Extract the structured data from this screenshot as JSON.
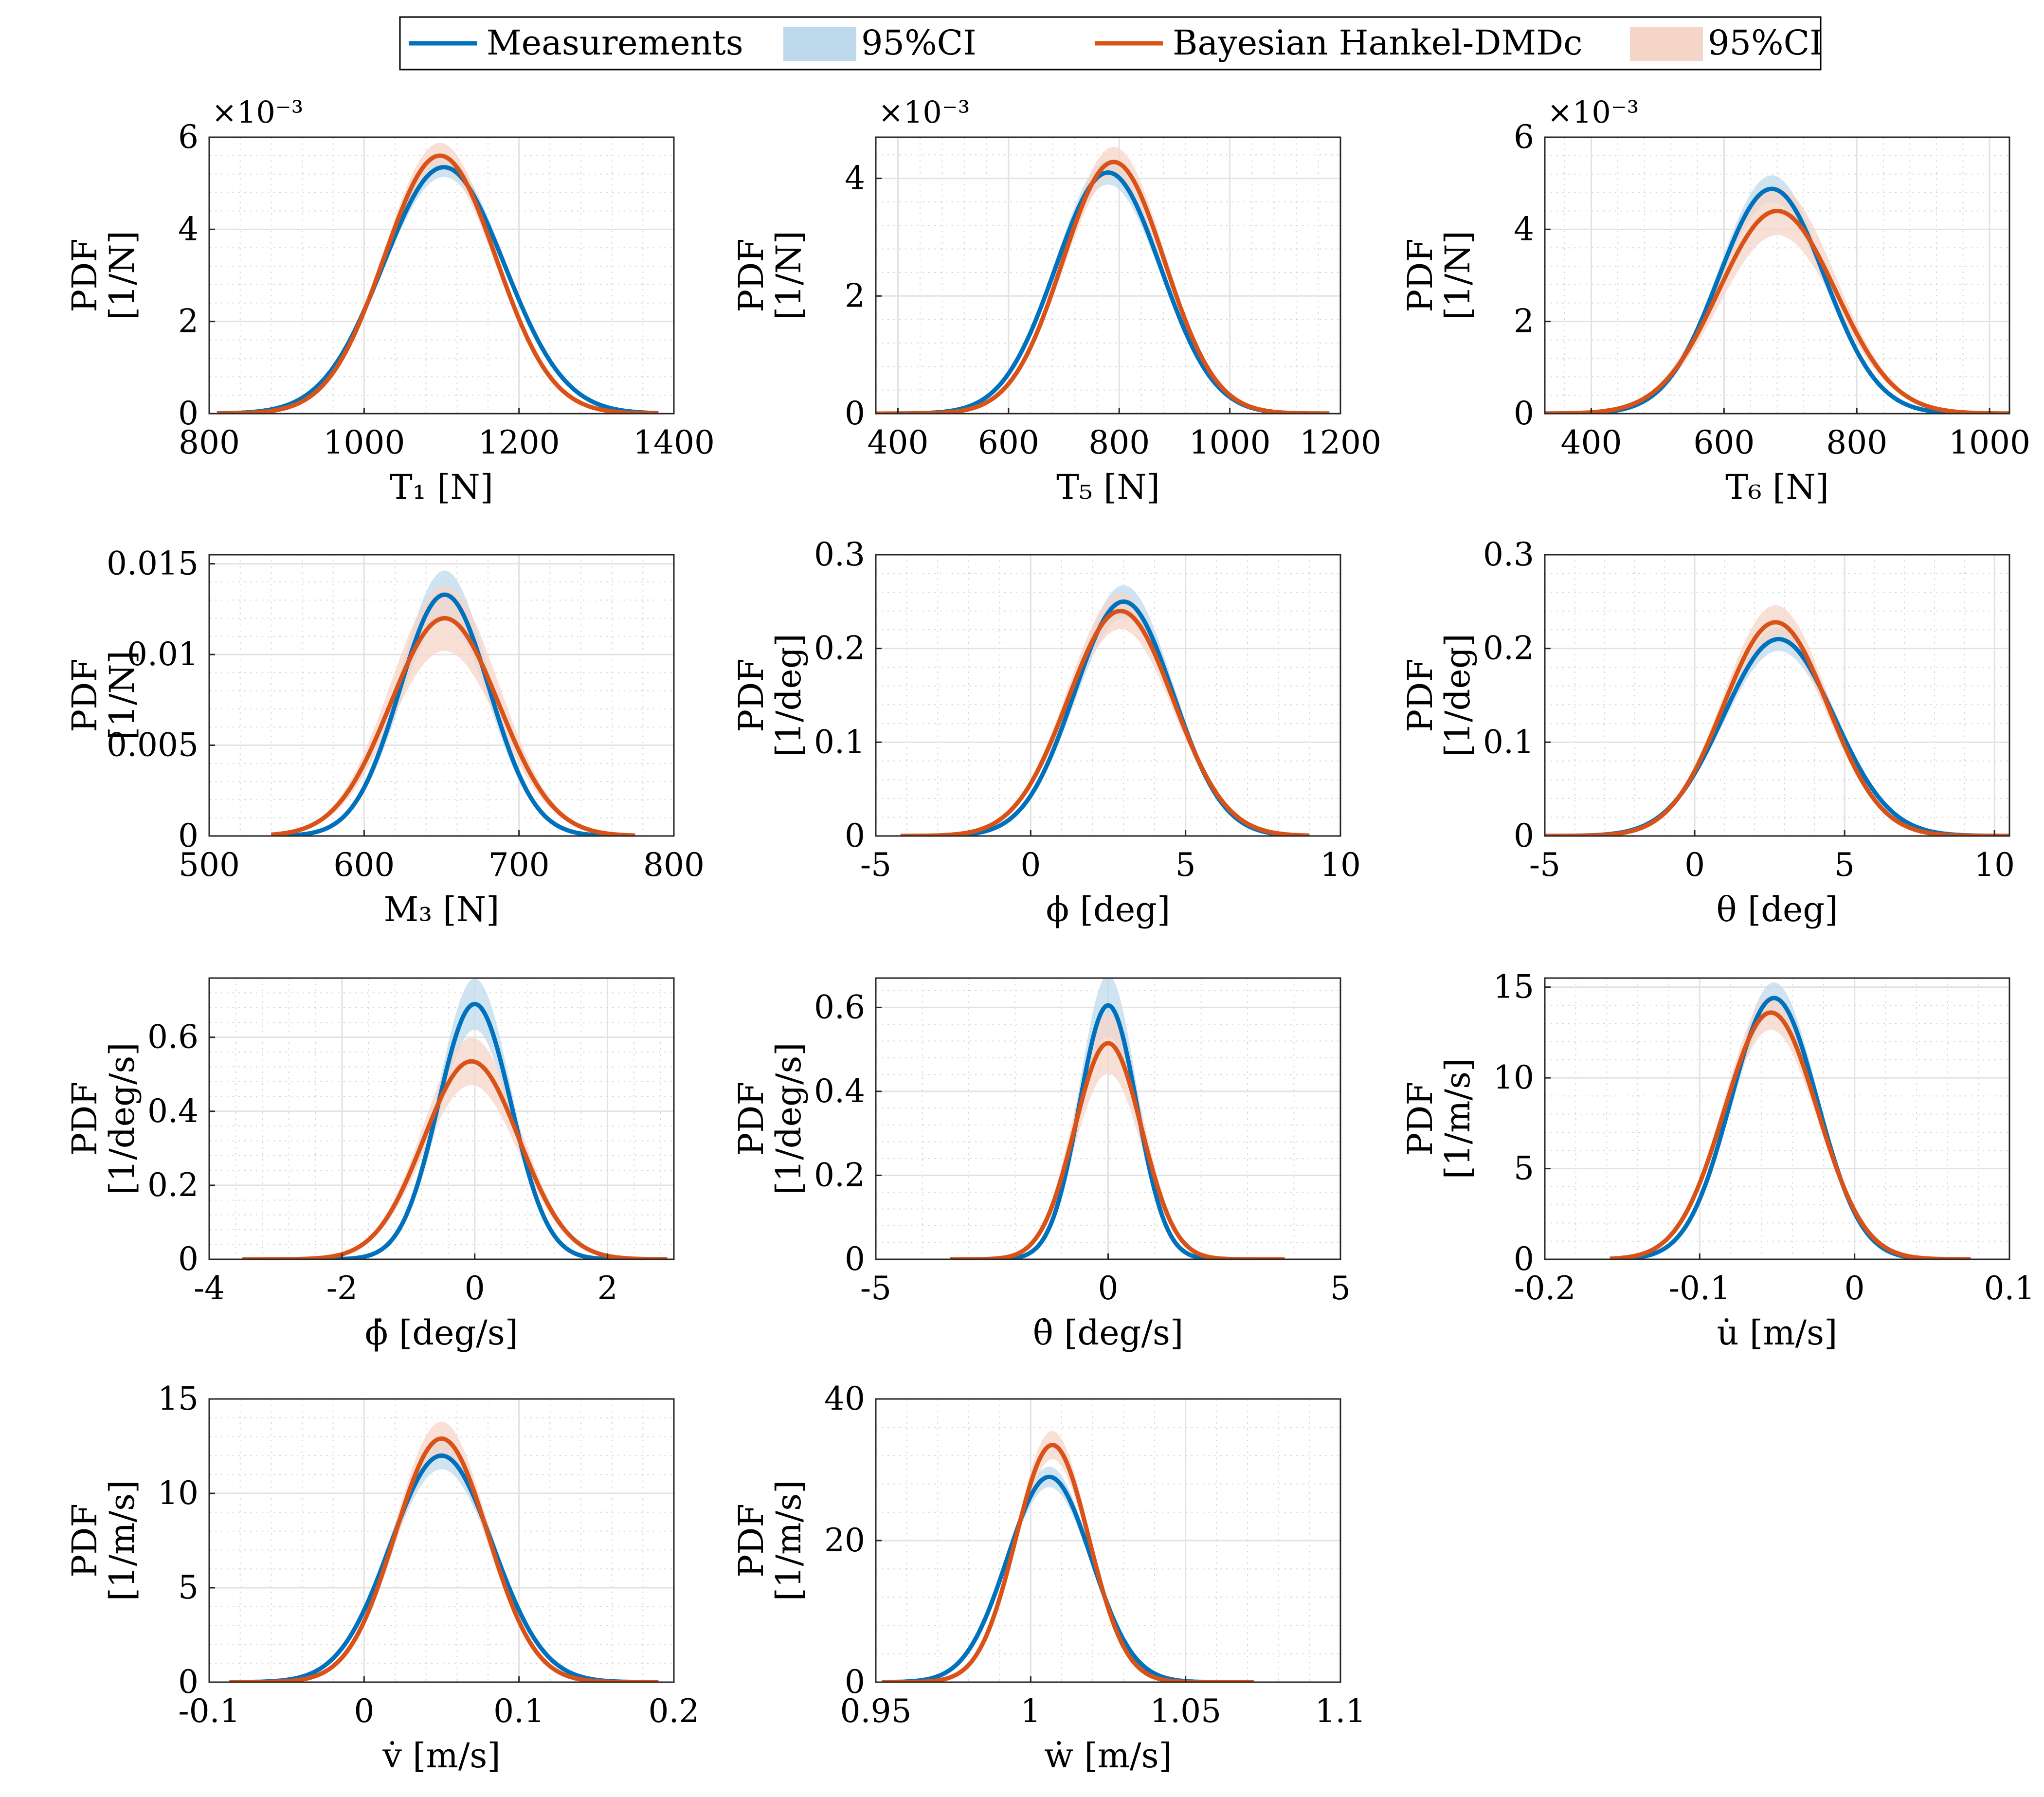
{
  "legend": {
    "entries": [
      {
        "label": "Measurements",
        "kind": "line",
        "color": "#0072BD"
      },
      {
        "label": "95%CI",
        "kind": "band",
        "color": "#BFD9EC"
      },
      {
        "label": "Bayesian Hankel-DMDc",
        "kind": "line",
        "color": "#D95319"
      },
      {
        "label": "95%CI",
        "kind": "band",
        "color": "#F6D5C9"
      }
    ]
  },
  "chart_data": [
    {
      "type": "line",
      "title": "",
      "xlabel": "T₁ [N]",
      "ylabel": [
        "PDF",
        "[1/N]"
      ],
      "exponent": "×10⁻³",
      "xlim": [
        800,
        1400
      ],
      "ylim": [
        0,
        6
      ],
      "xticks": [
        800,
        1000,
        1200,
        1400
      ],
      "xticklabels": [
        "800",
        "1000",
        "1200",
        "1400"
      ],
      "yticks": [
        0,
        2,
        4,
        6
      ],
      "yticklabels": [
        "0",
        "2",
        "4",
        "6"
      ],
      "series": [
        {
          "name": "Measurements",
          "color": "#0072BD",
          "mu": 1103,
          "sigma": 78,
          "peak": 5.35,
          "support": [
            810,
            1380
          ],
          "ci": 0.04
        },
        {
          "name": "Bayesian Hankel-DMDc",
          "color": "#D95319",
          "mu": 1098,
          "sigma": 72,
          "peak": 5.6,
          "support": [
            810,
            1380
          ],
          "ci": 0.05
        }
      ]
    },
    {
      "type": "line",
      "title": "",
      "xlabel": "T₅ [N]",
      "ylabel": [
        "PDF",
        "[1/N]"
      ],
      "exponent": "×10⁻³",
      "xlim": [
        360,
        1200
      ],
      "ylim": [
        0,
        4.7
      ],
      "xticks": [
        400,
        600,
        800,
        1000,
        1200
      ],
      "xticklabels": [
        "400",
        "600",
        "800",
        "1000",
        "1200"
      ],
      "yticks": [
        0,
        2,
        4
      ],
      "yticklabels": [
        "0",
        "2",
        "4"
      ],
      "series": [
        {
          "name": "Measurements",
          "color": "#0072BD",
          "mu": 780,
          "sigma": 95,
          "peak": 4.1,
          "support": [
            360,
            1180
          ],
          "ci": 0.05
        },
        {
          "name": "Bayesian Hankel-DMDc",
          "color": "#D95319",
          "mu": 790,
          "sigma": 92,
          "peak": 4.28,
          "support": [
            360,
            1180
          ],
          "ci": 0.06
        }
      ]
    },
    {
      "type": "line",
      "title": "",
      "xlabel": "T₆ [N]",
      "ylabel": [
        "PDF",
        "[1/N]"
      ],
      "exponent": "×10⁻³",
      "xlim": [
        330,
        1030
      ],
      "ylim": [
        0,
        6
      ],
      "xticks": [
        400,
        600,
        800,
        1000
      ],
      "xticklabels": [
        "400",
        "600",
        "800",
        "1000"
      ],
      "yticks": [
        0,
        2,
        4,
        6
      ],
      "yticklabels": [
        "0",
        "2",
        "4",
        "6"
      ],
      "series": [
        {
          "name": "Measurements",
          "color": "#0072BD",
          "mu": 672,
          "sigma": 80,
          "peak": 4.88,
          "support": [
            330,
            1030
          ],
          "ci": 0.06
        },
        {
          "name": "Bayesian Hankel-DMDc",
          "color": "#D95319",
          "mu": 680,
          "sigma": 88,
          "peak": 4.4,
          "support": [
            330,
            1030
          ],
          "ci": 0.12
        }
      ]
    },
    {
      "type": "line",
      "title": "",
      "xlabel": "M₃ [N]",
      "ylabel": [
        "PDF",
        "[1/N]"
      ],
      "exponent": "",
      "xlim": [
        500,
        800
      ],
      "ylim": [
        0,
        0.0155
      ],
      "xticks": [
        500,
        600,
        700,
        800
      ],
      "xticklabels": [
        "500",
        "600",
        "700",
        "800"
      ],
      "yticks": [
        0,
        0.005,
        0.01,
        0.015
      ],
      "yticklabels": [
        "0",
        "0.005",
        "0.01",
        "0.015"
      ],
      "series": [
        {
          "name": "Measurements",
          "color": "#0072BD",
          "mu": 652,
          "sigma": 29,
          "peak": 0.0133,
          "support": [
            540,
            775
          ],
          "ci": 0.1
        },
        {
          "name": "Bayesian Hankel-DMDc",
          "color": "#D95319",
          "mu": 652,
          "sigma": 35,
          "peak": 0.012,
          "support": [
            540,
            775
          ],
          "ci": 0.15
        }
      ]
    },
    {
      "type": "line",
      "title": "",
      "xlabel": "ϕ [deg]",
      "ylabel": [
        "PDF",
        "[1/deg]"
      ],
      "exponent": "",
      "xlim": [
        -5,
        10
      ],
      "ylim": [
        0,
        0.3
      ],
      "xticks": [
        -5,
        0,
        5,
        10
      ],
      "xticklabels": [
        "-5",
        "0",
        "5",
        "10"
      ],
      "yticks": [
        0,
        0.1,
        0.2,
        0.3
      ],
      "yticklabels": [
        "0",
        "0.1",
        "0.2",
        "0.3"
      ],
      "series": [
        {
          "name": "Measurements",
          "color": "#0072BD",
          "mu": 3.0,
          "sigma": 1.6,
          "peak": 0.25,
          "support": [
            -4.2,
            9.0
          ],
          "ci": 0.07
        },
        {
          "name": "Bayesian Hankel-DMDc",
          "color": "#D95319",
          "mu": 2.9,
          "sigma": 1.7,
          "peak": 0.24,
          "support": [
            -4.2,
            9.0
          ],
          "ci": 0.08
        }
      ]
    },
    {
      "type": "line",
      "title": "",
      "xlabel": "θ [deg]",
      "ylabel": [
        "PDF",
        "[1/deg]"
      ],
      "exponent": "",
      "xlim": [
        -5,
        10.5
      ],
      "ylim": [
        0,
        0.3
      ],
      "xticks": [
        -5,
        0,
        5,
        10
      ],
      "xticklabels": [
        "-5",
        "0",
        "5",
        "10"
      ],
      "yticks": [
        0,
        0.1,
        0.2,
        0.3
      ],
      "yticklabels": [
        "0",
        "0.1",
        "0.2",
        "0.3"
      ],
      "series": [
        {
          "name": "Measurements",
          "color": "#0072BD",
          "mu": 2.8,
          "sigma": 1.85,
          "peak": 0.21,
          "support": [
            -5,
            10.5
          ],
          "ci": 0.06
        },
        {
          "name": "Bayesian Hankel-DMDc",
          "color": "#D95319",
          "mu": 2.7,
          "sigma": 1.75,
          "peak": 0.228,
          "support": [
            -5,
            10.5
          ],
          "ci": 0.08
        }
      ]
    },
    {
      "type": "line",
      "title": "",
      "xlabel": "ϕ̇ [deg/s]",
      "ylabel": [
        "PDF",
        "[1/deg/s]"
      ],
      "exponent": "",
      "xlim": [
        -4,
        3
      ],
      "ylim": [
        0,
        0.76
      ],
      "xticks": [
        -4,
        -2,
        0,
        2
      ],
      "xticklabels": [
        "-4",
        "-2",
        "0",
        "2"
      ],
      "yticks": [
        0,
        0.2,
        0.4,
        0.6
      ],
      "yticklabels": [
        "0",
        "0.2",
        "0.4",
        "0.6"
      ],
      "series": [
        {
          "name": "Measurements",
          "color": "#0072BD",
          "mu": 0.0,
          "sigma": 0.55,
          "peak": 0.69,
          "support": [
            -3.5,
            2.9
          ],
          "ci": 0.1
        },
        {
          "name": "Bayesian Hankel-DMDc",
          "color": "#D95319",
          "mu": -0.05,
          "sigma": 0.72,
          "peak": 0.535,
          "support": [
            -3.5,
            2.9
          ],
          "ci": 0.12
        }
      ]
    },
    {
      "type": "line",
      "title": "",
      "xlabel": "θ̇ [deg/s]",
      "ylabel": [
        "PDF",
        "[1/deg/s]"
      ],
      "exponent": "",
      "xlim": [
        -5,
        5
      ],
      "ylim": [
        0,
        0.67
      ],
      "xticks": [
        -5,
        0,
        5
      ],
      "xticklabels": [
        "-5",
        "0",
        "5"
      ],
      "yticks": [
        0,
        0.2,
        0.4,
        0.6
      ],
      "yticklabels": [
        "0",
        "0.2",
        "0.4",
        "0.6"
      ],
      "series": [
        {
          "name": "Measurements",
          "color": "#0072BD",
          "mu": 0.0,
          "sigma": 0.62,
          "peak": 0.605,
          "support": [
            -3.4,
            3.8
          ],
          "ci": 0.12
        },
        {
          "name": "Bayesian Hankel-DMDc",
          "color": "#D95319",
          "mu": 0.0,
          "sigma": 0.72,
          "peak": 0.515,
          "support": [
            -3.4,
            3.8
          ],
          "ci": 0.14
        }
      ]
    },
    {
      "type": "line",
      "title": "",
      "xlabel": "u̇ [m/s]",
      "ylabel": [
        "PDF",
        "[1/m/s]"
      ],
      "exponent": "",
      "xlim": [
        -0.2,
        0.1
      ],
      "ylim": [
        0,
        15.5
      ],
      "xticks": [
        -0.2,
        -0.1,
        0,
        0.1
      ],
      "xticklabels": [
        "-0.2",
        "-0.1",
        "0",
        "0.1"
      ],
      "yticks": [
        0,
        5,
        10,
        15
      ],
      "yticklabels": [
        "0",
        "5",
        "10",
        "15"
      ],
      "series": [
        {
          "name": "Measurements",
          "color": "#0072BD",
          "mu": -0.052,
          "sigma": 0.028,
          "peak": 14.4,
          "support": [
            -0.158,
            0.075
          ],
          "ci": 0.06
        },
        {
          "name": "Bayesian Hankel-DMDc",
          "color": "#D95319",
          "mu": -0.054,
          "sigma": 0.03,
          "peak": 13.6,
          "support": [
            -0.158,
            0.075
          ],
          "ci": 0.07
        }
      ]
    },
    {
      "type": "line",
      "title": "",
      "xlabel": "v̇ [m/s]",
      "ylabel": [
        "PDF",
        "[1/m/s]"
      ],
      "exponent": "",
      "xlim": [
        -0.1,
        0.2
      ],
      "ylim": [
        0,
        15
      ],
      "xticks": [
        -0.1,
        0,
        0.1,
        0.2
      ],
      "xticklabels": [
        "-0.1",
        "0",
        "0.1",
        "0.2"
      ],
      "yticks": [
        0,
        5,
        10,
        15
      ],
      "yticklabels": [
        "0",
        "5",
        "10",
        "15"
      ],
      "series": [
        {
          "name": "Measurements",
          "color": "#0072BD",
          "mu": 0.05,
          "sigma": 0.033,
          "peak": 12.0,
          "support": [
            -0.087,
            0.19
          ],
          "ci": 0.06
        },
        {
          "name": "Bayesian Hankel-DMDc",
          "color": "#D95319",
          "mu": 0.05,
          "sigma": 0.03,
          "peak": 12.9,
          "support": [
            -0.087,
            0.19
          ],
          "ci": 0.07
        }
      ]
    },
    {
      "type": "line",
      "title": "",
      "xlabel": "ẇ [m/s]",
      "ylabel": [
        "PDF",
        "[1/m/s]"
      ],
      "exponent": "",
      "xlim": [
        0.95,
        1.1
      ],
      "ylim": [
        0,
        40
      ],
      "xticks": [
        0.95,
        1,
        1.05,
        1.1
      ],
      "xticklabels": [
        "0.95",
        "1",
        "1.05",
        "1.1"
      ],
      "yticks": [
        0,
        20,
        40
      ],
      "yticklabels": [
        "0",
        "20",
        "40"
      ],
      "series": [
        {
          "name": "Measurements",
          "color": "#0072BD",
          "mu": 1.006,
          "sigma": 0.0135,
          "peak": 29.0,
          "support": [
            0.952,
            1.072
          ],
          "ci": 0.05
        },
        {
          "name": "Bayesian Hankel-DMDc",
          "color": "#D95319",
          "mu": 1.007,
          "sigma": 0.0118,
          "peak": 33.5,
          "support": [
            0.952,
            1.072
          ],
          "ci": 0.06
        }
      ]
    }
  ]
}
